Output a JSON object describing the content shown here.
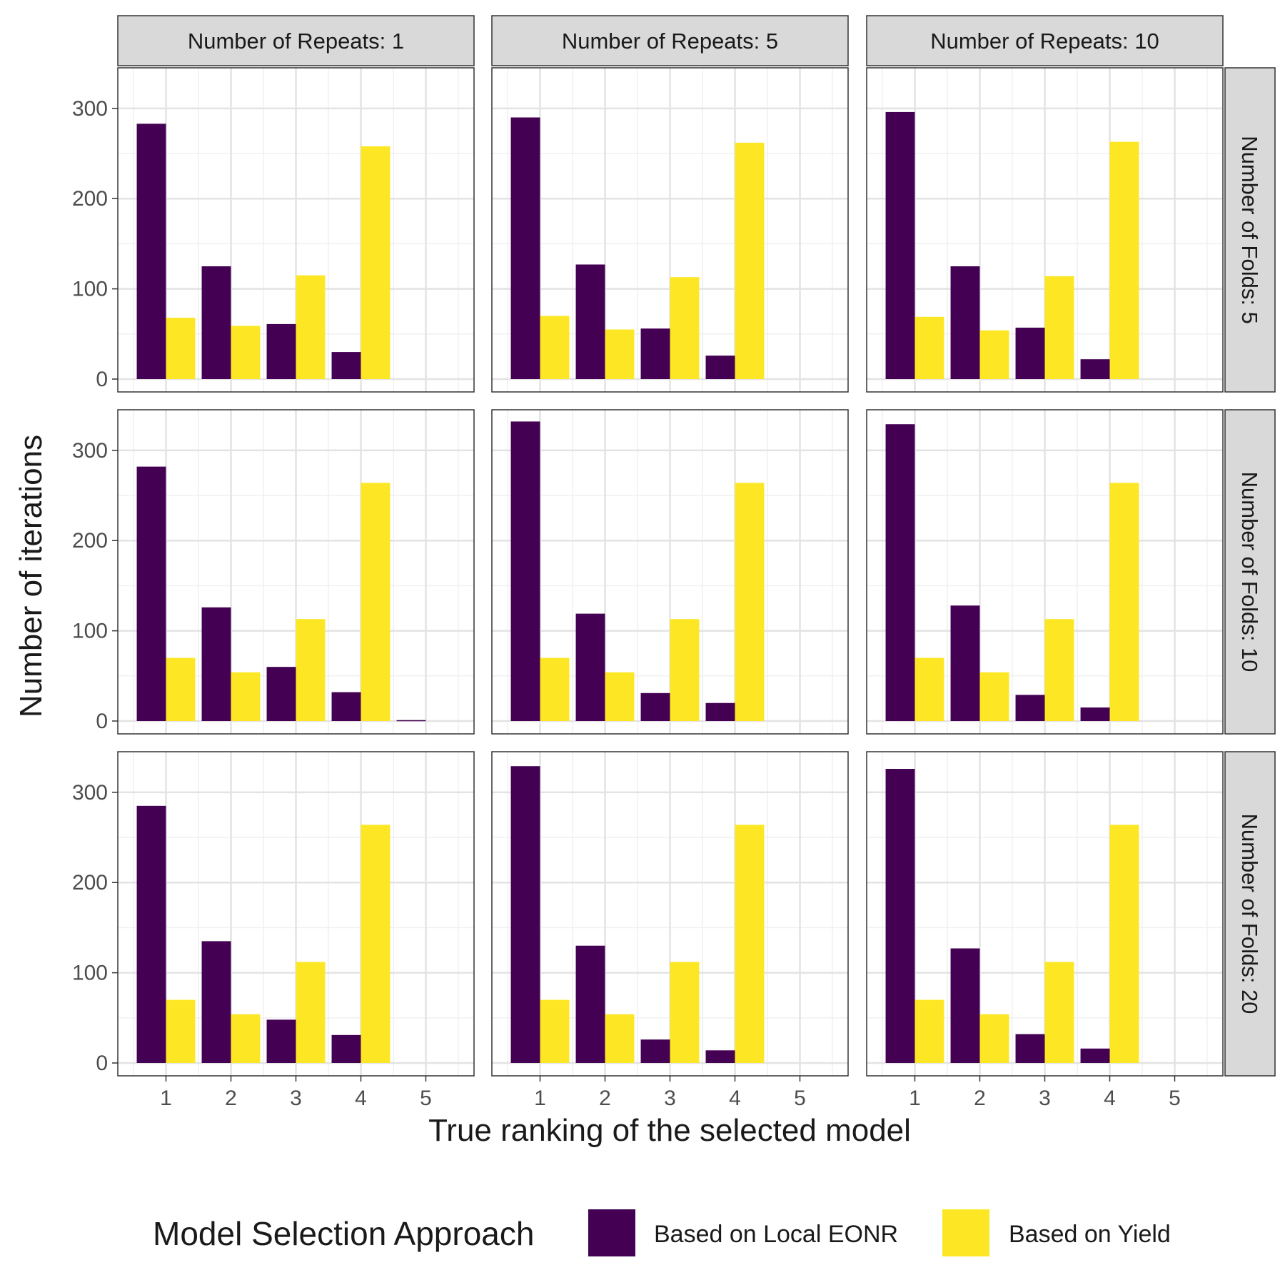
{
  "chart_data": {
    "type": "bar",
    "layout": "facet_grid",
    "xlabel": "True ranking of the selected model",
    "ylabel": "Number of iterations",
    "x_ticks": [
      "1",
      "2",
      "3",
      "4",
      "5"
    ],
    "y_ticks": [
      "0",
      "100",
      "200",
      "300"
    ],
    "ylim": [
      0,
      345
    ],
    "grid": true,
    "legend": {
      "title": "Model Selection Approach",
      "position": "bottom",
      "entries": [
        "Based on Local EONR",
        "Based on Yield"
      ]
    },
    "colors": {
      "Based on Local EONR": "#440154",
      "Based on Yield": "#FDE725"
    },
    "col_labels": [
      "Number of Repeats: 1",
      "Number of Repeats: 5",
      "Number of Repeats: 10"
    ],
    "row_labels": [
      "Number of Folds: 5",
      "Number of Folds: 10",
      "Number of Folds: 20"
    ],
    "panels": [
      {
        "row": 0,
        "col": 0,
        "series": [
          {
            "name": "Based on Local EONR",
            "values": [
              283,
              125,
              61,
              30,
              0
            ]
          },
          {
            "name": "Based on Yield",
            "values": [
              68,
              59,
              115,
              258,
              0
            ]
          }
        ]
      },
      {
        "row": 0,
        "col": 1,
        "series": [
          {
            "name": "Based on Local EONR",
            "values": [
              290,
              127,
              56,
              26,
              0
            ]
          },
          {
            "name": "Based on Yield",
            "values": [
              70,
              55,
              113,
              262,
              0
            ]
          }
        ]
      },
      {
        "row": 0,
        "col": 2,
        "series": [
          {
            "name": "Based on Local EONR",
            "values": [
              296,
              125,
              57,
              22,
              0
            ]
          },
          {
            "name": "Based on Yield",
            "values": [
              69,
              54,
              114,
              263,
              0
            ]
          }
        ]
      },
      {
        "row": 1,
        "col": 0,
        "series": [
          {
            "name": "Based on Local EONR",
            "values": [
              282,
              126,
              60,
              32,
              1
            ]
          },
          {
            "name": "Based on Yield",
            "values": [
              70,
              54,
              113,
              264,
              0
            ]
          }
        ]
      },
      {
        "row": 1,
        "col": 1,
        "series": [
          {
            "name": "Based on Local EONR",
            "values": [
              332,
              119,
              31,
              20,
              0
            ]
          },
          {
            "name": "Based on Yield",
            "values": [
              70,
              54,
              113,
              264,
              0
            ]
          }
        ]
      },
      {
        "row": 1,
        "col": 2,
        "series": [
          {
            "name": "Based on Local EONR",
            "values": [
              329,
              128,
              29,
              15,
              0
            ]
          },
          {
            "name": "Based on Yield",
            "values": [
              70,
              54,
              113,
              264,
              0
            ]
          }
        ]
      },
      {
        "row": 2,
        "col": 0,
        "series": [
          {
            "name": "Based on Local EONR",
            "values": [
              285,
              135,
              48,
              31,
              0
            ]
          },
          {
            "name": "Based on Yield",
            "values": [
              70,
              54,
              112,
              264,
              0
            ]
          }
        ]
      },
      {
        "row": 2,
        "col": 1,
        "series": [
          {
            "name": "Based on Local EONR",
            "values": [
              329,
              130,
              26,
              14,
              0
            ]
          },
          {
            "name": "Based on Yield",
            "values": [
              70,
              54,
              112,
              264,
              0
            ]
          }
        ]
      },
      {
        "row": 2,
        "col": 2,
        "series": [
          {
            "name": "Based on Local EONR",
            "values": [
              326,
              127,
              32,
              16,
              0
            ]
          },
          {
            "name": "Based on Yield",
            "values": [
              70,
              54,
              112,
              264,
              0
            ]
          }
        ]
      }
    ]
  }
}
